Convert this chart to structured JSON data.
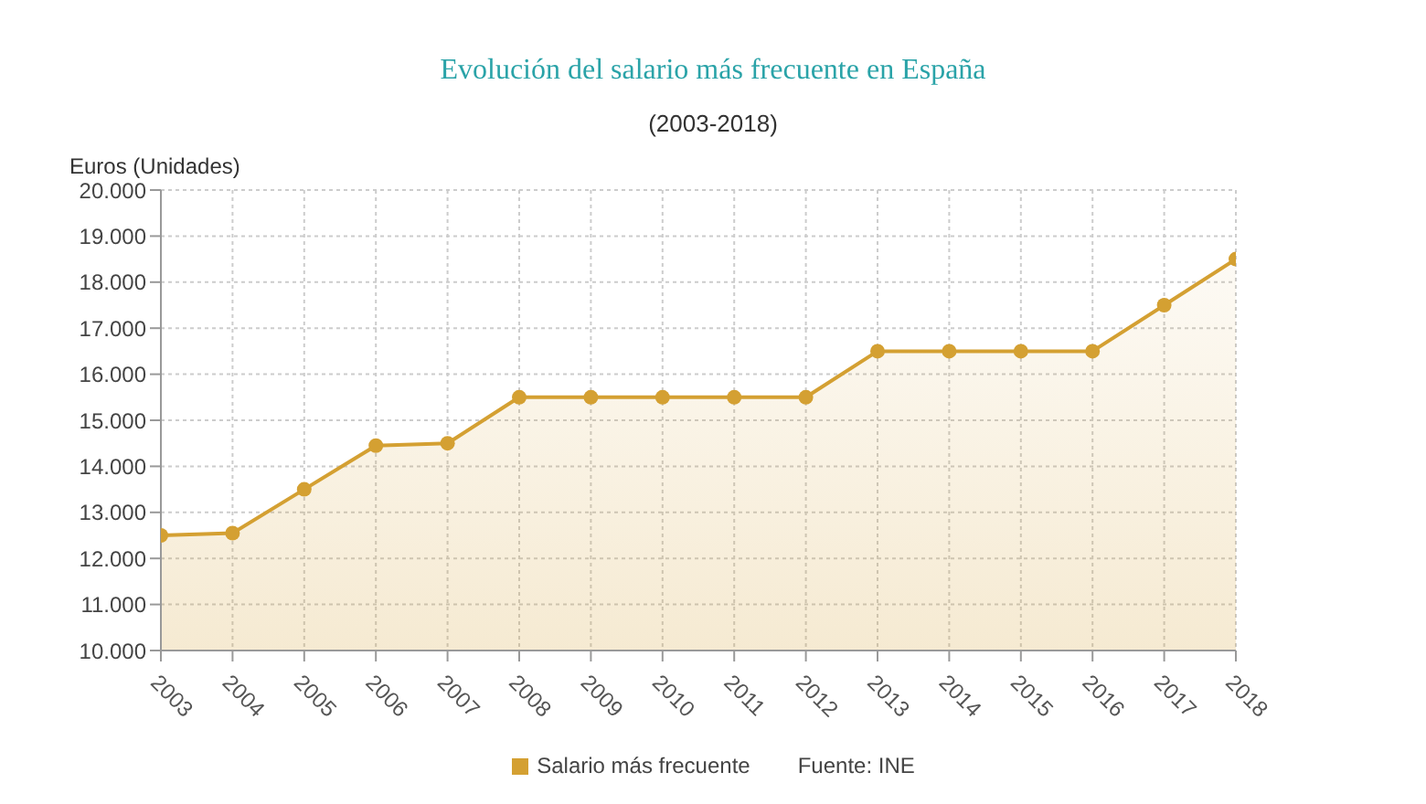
{
  "chart_data": {
    "type": "area",
    "title": "Evolución del salario más frecuente en España",
    "subtitle": "(2003-2018)",
    "ylabel": "Euros (Unidades)",
    "categories": [
      "2003",
      "2004",
      "2005",
      "2006",
      "2007",
      "2008",
      "2009",
      "2010",
      "2011",
      "2012",
      "2013",
      "2014",
      "2015",
      "2016",
      "2017",
      "2018"
    ],
    "series": [
      {
        "name": "Salario más frecuente",
        "color": "#d4a032",
        "values": [
          12500,
          12550,
          13500,
          14450,
          14500,
          15500,
          15500,
          15500,
          15500,
          15500,
          16500,
          16500,
          16500,
          16500,
          17500,
          18500
        ]
      }
    ],
    "ylim": [
      10000,
      20000
    ],
    "yticks": [
      {
        "value": 10000,
        "label": "10.000"
      },
      {
        "value": 11000,
        "label": "11.000"
      },
      {
        "value": 12000,
        "label": "12.000"
      },
      {
        "value": 13000,
        "label": "13.000"
      },
      {
        "value": 14000,
        "label": "14.000"
      },
      {
        "value": 15000,
        "label": "15.000"
      },
      {
        "value": 16000,
        "label": "16.000"
      },
      {
        "value": 17000,
        "label": "17.000"
      },
      {
        "value": 18000,
        "label": "18.000"
      },
      {
        "value": 19000,
        "label": "19.000"
      },
      {
        "value": 20000,
        "label": "20.000"
      }
    ],
    "grid": true,
    "legend": "bottom",
    "marker": "circle",
    "line_style": "solid",
    "annotations": [
      "Fuente: INE"
    ]
  }
}
